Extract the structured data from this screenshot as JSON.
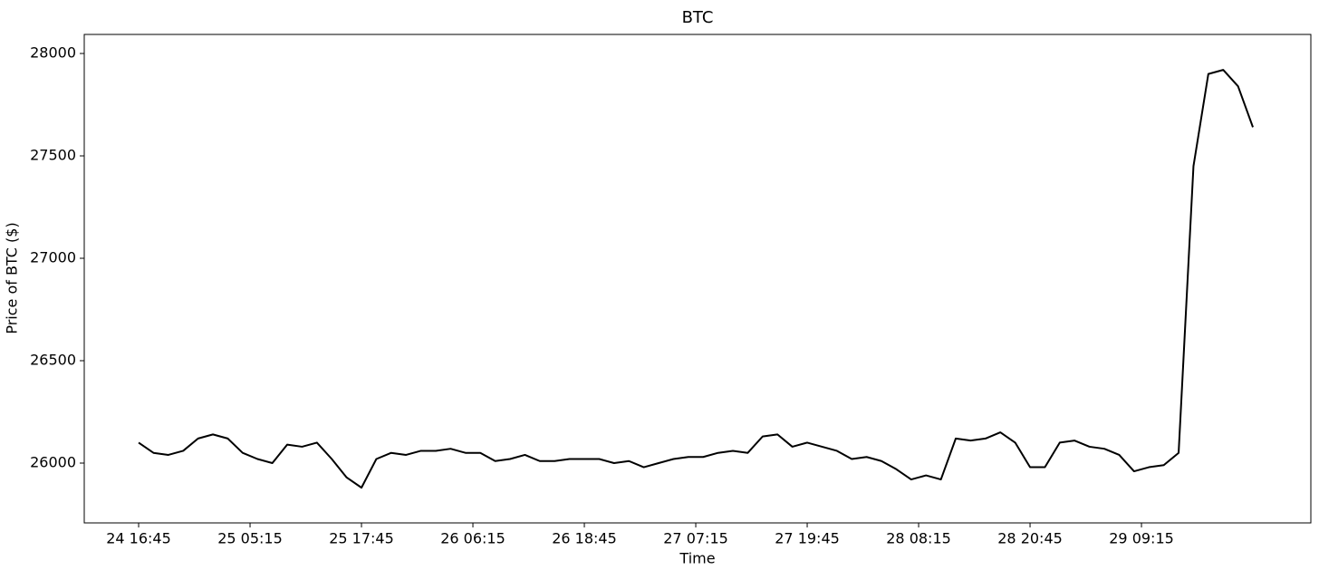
{
  "chart_data": {
    "type": "line",
    "title": "BTC",
    "x_label": "Time",
    "y_label": "Price of BTC ($)",
    "x": [
      "24 16:45",
      "24 18:25",
      "24 20:05",
      "24 21:45",
      "24 23:25",
      "25 01:05",
      "25 02:45",
      "25 04:25",
      "25 06:05",
      "25 07:45",
      "25 09:25",
      "25 11:05",
      "25 12:45",
      "25 14:25",
      "25 16:05",
      "25 17:45",
      "25 19:25",
      "25 21:05",
      "25 22:45",
      "26 00:25",
      "26 02:05",
      "26 03:45",
      "26 05:25",
      "26 07:05",
      "26 08:45",
      "26 10:25",
      "26 12:05",
      "26 13:45",
      "26 15:25",
      "26 17:05",
      "26 18:45",
      "26 20:25",
      "26 22:05",
      "26 23:45",
      "27 01:25",
      "27 03:05",
      "27 04:45",
      "27 06:25",
      "27 08:05",
      "27 09:45",
      "27 11:25",
      "27 13:05",
      "27 14:45",
      "27 16:25",
      "27 18:05",
      "27 19:45",
      "27 21:25",
      "27 23:05",
      "28 00:45",
      "28 02:25",
      "28 04:05",
      "28 05:45",
      "28 07:25",
      "28 09:05",
      "28 10:45",
      "28 12:25",
      "28 14:05",
      "28 15:45",
      "28 17:25",
      "28 19:05",
      "28 20:45",
      "28 22:25",
      "29 00:05",
      "29 01:45",
      "29 03:25",
      "29 05:05",
      "29 06:45",
      "29 08:25",
      "29 10:05",
      "29 11:45",
      "29 13:25",
      "29 15:05",
      "29 16:45",
      "29 18:25",
      "29 20:05",
      "29 21:45"
    ],
    "series": [
      {
        "name": "BTC",
        "color": "#000000",
        "values": [
          26100,
          26050,
          26040,
          26060,
          26120,
          26140,
          26120,
          26050,
          26020,
          26000,
          26090,
          26080,
          26100,
          26020,
          25930,
          25880,
          26020,
          26050,
          26040,
          26060,
          26060,
          26070,
          26050,
          26050,
          26010,
          26020,
          26040,
          26010,
          26010,
          26020,
          26020,
          26020,
          26000,
          26010,
          25980,
          26000,
          26020,
          26030,
          26030,
          26050,
          26060,
          26050,
          26130,
          26140,
          26080,
          26100,
          26080,
          26060,
          26020,
          26030,
          26010,
          25970,
          25920,
          25940,
          25920,
          26120,
          26110,
          26120,
          26150,
          26100,
          25980,
          25980,
          26100,
          26110,
          26080,
          26070,
          26040,
          25960,
          25980,
          25990,
          26050,
          27450,
          27900,
          27920,
          27840,
          27640
        ]
      }
    ],
    "xlim": [
      "24 10:39",
      "30 04:15"
    ],
    "xticks": [
      "24 16:45",
      "25 05:15",
      "25 17:45",
      "26 06:15",
      "26 18:45",
      "27 07:15",
      "27 19:45",
      "28 08:15",
      "28 20:45",
      "29 09:15"
    ],
    "ylim": [
      25708,
      28093
    ],
    "yticks": [
      26000,
      26500,
      27000,
      27500,
      28000
    ]
  }
}
